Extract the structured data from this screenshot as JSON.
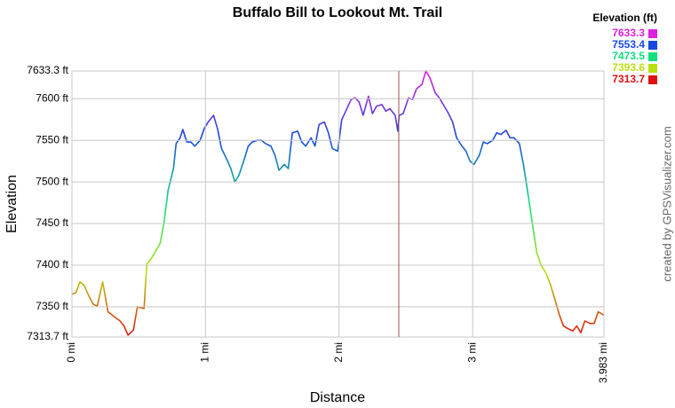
{
  "chart_data": {
    "type": "line",
    "title": "Buffalo Bill to Lookout Mt. Trail",
    "x_label": "Distance",
    "y_label": "Elevation",
    "credit": "created by GPSVisualizer.com",
    "legend": {
      "title": "Elevation (ft)",
      "position": "top-right",
      "items": [
        {
          "value": 7633.3,
          "color": "#e020e0"
        },
        {
          "value": 7553.4,
          "color": "#1848e0"
        },
        {
          "value": 7473.5,
          "color": "#10e080"
        },
        {
          "value": 7393.6,
          "color": "#b8e010"
        },
        {
          "value": 7313.7,
          "color": "#e01010"
        }
      ]
    },
    "xlim": [
      0,
      3.983
    ],
    "ylim": [
      7313.7,
      7633.3
    ],
    "xticks": [
      {
        "value": 0,
        "label": "0 mi"
      },
      {
        "value": 1,
        "label": "1 mi"
      },
      {
        "value": 2,
        "label": "2 mi"
      },
      {
        "value": 3,
        "label": "3 mi"
      },
      {
        "value": 3.983,
        "label": "3.983 mi"
      }
    ],
    "yticks": [
      {
        "value": 7313.7,
        "label": "7313.7 ft"
      },
      {
        "value": 7350,
        "label": "7350 ft"
      },
      {
        "value": 7400,
        "label": "7400 ft"
      },
      {
        "value": 7450,
        "label": "7450 ft"
      },
      {
        "value": 7500,
        "label": "7500 ft"
      },
      {
        "value": 7550,
        "label": "7550 ft"
      },
      {
        "value": 7600,
        "label": "7600 ft"
      },
      {
        "value": 7633.3,
        "label": "7633.3 ft"
      }
    ],
    "grid": true,
    "x": [
      0,
      0.03,
      0.06,
      0.09,
      0.13,
      0.16,
      0.19,
      0.23,
      0.25,
      0.27,
      0.31,
      0.36,
      0.39,
      0.42,
      0.46,
      0.49,
      0.54,
      0.56,
      0.59,
      0.62,
      0.66,
      0.69,
      0.72,
      0.76,
      0.78,
      0.81,
      0.83,
      0.86,
      0.89,
      0.92,
      0.96,
      0.99,
      1.02,
      1.06,
      1.09,
      1.12,
      1.16,
      1.19,
      1.22,
      1.25,
      1.29,
      1.32,
      1.35,
      1.39,
      1.42,
      1.45,
      1.49,
      1.52,
      1.55,
      1.59,
      1.62,
      1.65,
      1.69,
      1.72,
      1.75,
      1.79,
      1.82,
      1.85,
      1.89,
      1.92,
      1.95,
      1.99,
      2.02,
      2.05,
      2.09,
      2.12,
      2.15,
      2.18,
      2.22,
      2.25,
      2.28,
      2.32,
      2.35,
      2.38,
      2.42,
      2.44,
      2.45,
      2.48,
      2.52,
      2.55,
      2.58,
      2.62,
      2.65,
      2.68,
      2.72,
      2.75,
      2.78,
      2.82,
      2.85,
      2.88,
      2.92,
      2.95,
      2.98,
      3.01,
      3.05,
      3.08,
      3.11,
      3.15,
      3.18,
      3.21,
      3.25,
      3.28,
      3.31,
      3.35,
      3.38,
      3.41,
      3.45,
      3.48,
      3.51,
      3.55,
      3.58,
      3.61,
      3.65,
      3.68,
      3.71,
      3.75,
      3.78,
      3.81,
      3.84,
      3.88,
      3.91,
      3.94,
      3.983
    ],
    "values": [
      7365,
      7367,
      7380,
      7376,
      7362,
      7353,
      7351,
      7380,
      7362,
      7344,
      7339,
      7333,
      7327,
      7316,
      7322,
      7350,
      7348,
      7401,
      7407,
      7415,
      7426,
      7452,
      7490,
      7516,
      7546,
      7553,
      7563,
      7548,
      7548,
      7543,
      7550,
      7564,
      7572,
      7580,
      7564,
      7540,
      7527,
      7516,
      7500,
      7508,
      7527,
      7543,
      7548,
      7550,
      7550,
      7546,
      7543,
      7532,
      7514,
      7521,
      7516,
      7559,
      7561,
      7548,
      7543,
      7553,
      7543,
      7569,
      7572,
      7559,
      7540,
      7537,
      7575,
      7585,
      7599,
      7601,
      7596,
      7580,
      7603,
      7582,
      7591,
      7593,
      7585,
      7588,
      7580,
      7561,
      7580,
      7582,
      7601,
      7599,
      7612,
      7617,
      7633.3,
      7625,
      7607,
      7601,
      7593,
      7582,
      7572,
      7553,
      7543,
      7537,
      7525,
      7521,
      7532,
      7548,
      7546,
      7550,
      7559,
      7557,
      7562,
      7553,
      7553,
      7546,
      7521,
      7490,
      7447,
      7415,
      7401,
      7390,
      7378,
      7362,
      7340,
      7327,
      7324,
      7321,
      7327,
      7319,
      7333,
      7330,
      7330,
      7344,
      7340
    ]
  }
}
